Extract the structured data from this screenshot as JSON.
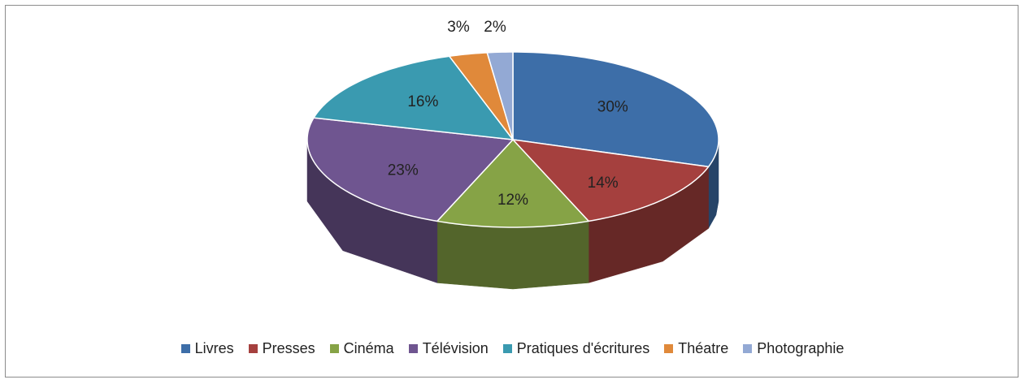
{
  "chart_data": {
    "type": "pie3d",
    "categories": [
      "Livres",
      "Presses",
      "Cinéma",
      "Télévision",
      "Pratiques d'écritures",
      "Théatre",
      "Photographie"
    ],
    "values": [
      30,
      14,
      12,
      23,
      16,
      3,
      2
    ],
    "value_labels": [
      "30%",
      "14%",
      "12%",
      "23%",
      "16%",
      "3%",
      "2%"
    ],
    "colors": [
      "#3d6ea8",
      "#a5403e",
      "#86a346",
      "#6f5590",
      "#3a9ab0",
      "#e0893a",
      "#93a9d4"
    ],
    "legend": "bottom"
  }
}
